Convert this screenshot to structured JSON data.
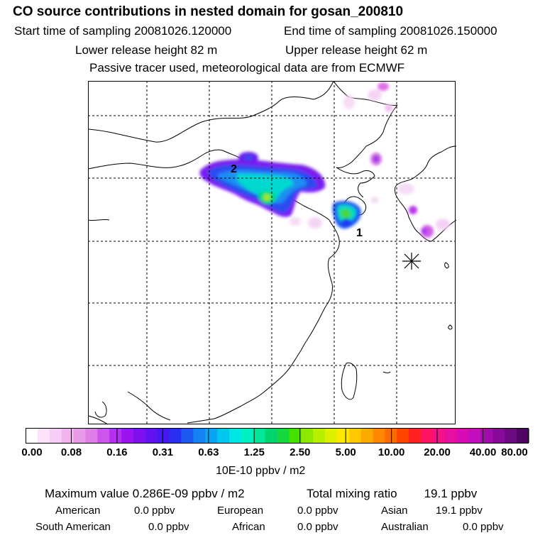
{
  "header": {
    "title": "CO  source contributions in nested domain for gosan_200810",
    "start_label": "Start time of sampling 20081026.120000",
    "end_label": "End time of sampling 20081026.150000",
    "lower_label": "Lower release height   82 m",
    "upper_label": "Upper release height   62 m",
    "tracer_note": "Passive tracer used, meteorological data are from ECMWF"
  },
  "map": {
    "labels": [
      "1",
      "2"
    ],
    "station_marker": "asterisk-icon"
  },
  "scale": {
    "ticks": [
      "0.00",
      "0.08",
      "0.16",
      "0.31",
      "0.63",
      "1.25",
      "2.50",
      "5.00",
      "10.00",
      "20.00",
      "40.00",
      "80.00"
    ],
    "units": "10E-10 ppbv / m2",
    "colors": [
      "#ffffff",
      "#fbe3fb",
      "#f6cdf6",
      "#f0b5f0",
      "#e79be7",
      "#dd7fe6",
      "#cc55ee",
      "#b531f2",
      "#9a14f0",
      "#7f10ee",
      "#6212ee",
      "#4418ee",
      "#2a2ef0",
      "#1c58f2",
      "#1482f2",
      "#0aa4f2",
      "#00c6f0",
      "#00e6e6",
      "#00f0c4",
      "#00e69a",
      "#00d46e",
      "#14d83c",
      "#44e000",
      "#8ce800",
      "#b8ee00",
      "#dcf000",
      "#ffe800",
      "#ffc800",
      "#ffaa00",
      "#ff8800",
      "#ff6a00",
      "#ff4400",
      "#ff2222",
      "#ff1464",
      "#f51188",
      "#e70fa0",
      "#d60db6",
      "#c00ec0",
      "#a30cac",
      "#880a98",
      "#6c0880",
      "#4f0564"
    ]
  },
  "stats": {
    "max_value": "Maximum value  0.286E-09 ppbv / m2",
    "total_mixing": "Total mixing ratio",
    "total_mixing_value": "19.1 ppbv",
    "regions": [
      {
        "name": "American",
        "value": "0.0 ppbv"
      },
      {
        "name": "European",
        "value": "0.0 ppbv"
      },
      {
        "name": "Asian",
        "value": "19.1 ppbv"
      },
      {
        "name": "South American",
        "value": "0.0 ppbv"
      },
      {
        "name": "African",
        "value": "0.0 ppbv"
      },
      {
        "name": "Australian",
        "value": "0.0 ppbv"
      }
    ]
  }
}
